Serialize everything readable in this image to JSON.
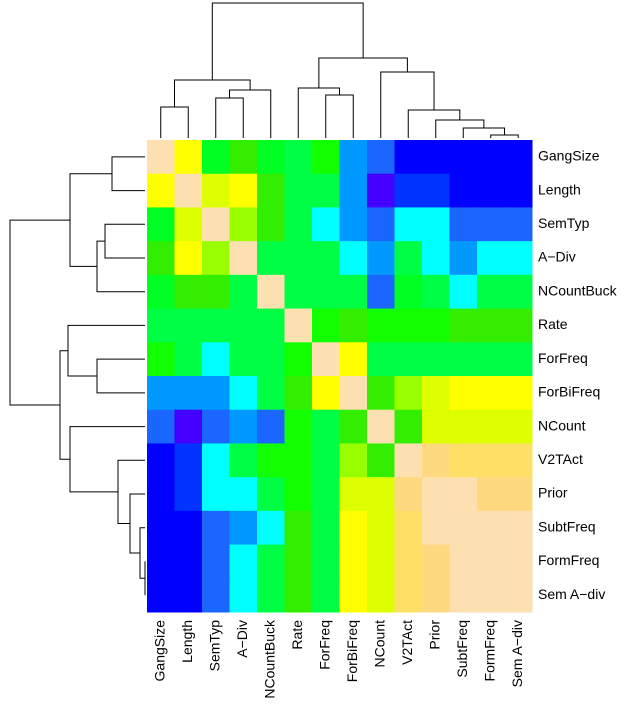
{
  "chart_data": {
    "type": "heatmap",
    "rows": [
      "GangSize",
      "Length",
      "SemTyp",
      "A−Div",
      "NCountBuck",
      "Rate",
      "ForFreq",
      "ForBiFreq",
      "NCount",
      "V2TAct",
      "Prior",
      "SubtFreq",
      "FormFreq",
      "Sem A−div"
    ],
    "columns": [
      "GangSize",
      "Length",
      "SemTyp",
      "A−Div",
      "NCountBuck",
      "Rate",
      "ForFreq",
      "ForBiFreq",
      "NCount",
      "V2TAct",
      "Prior",
      "SubtFreq",
      "FormFreq",
      "Sem A−div"
    ],
    "cell_colors": [
      [
        "#fde0b0",
        "#ffff00",
        "#00ff22",
        "#33ee00",
        "#00ff22",
        "#00ff44",
        "#11ff00",
        "#0099ff",
        "#1a66ff",
        "#0000ff",
        "#0000ff",
        "#0000ff",
        "#0000ff",
        "#0000ff"
      ],
      [
        "#ffff00",
        "#fde0b0",
        "#ddff00",
        "#ffff00",
        "#33ee00",
        "#00ff44",
        "#00ff44",
        "#0099ff",
        "#4400ff",
        "#0033ff",
        "#0033ff",
        "#0000ff",
        "#0000ff",
        "#0000ff"
      ],
      [
        "#00ff22",
        "#ddff00",
        "#fde0b0",
        "#99ff00",
        "#33ee00",
        "#00ff44",
        "#00ffff",
        "#0099ff",
        "#1a66ff",
        "#00ffff",
        "#00ffff",
        "#1a66ff",
        "#1a66ff",
        "#1a66ff"
      ],
      [
        "#33ee00",
        "#ffff00",
        "#99ff00",
        "#fde0b0",
        "#00ff44",
        "#00ff44",
        "#00ff44",
        "#00ffff",
        "#0099ff",
        "#00ff44",
        "#00ffff",
        "#0099ff",
        "#00ffff",
        "#00ffff"
      ],
      [
        "#00ff22",
        "#33ee00",
        "#33ee00",
        "#00ff44",
        "#fde0b0",
        "#00ff44",
        "#00ff44",
        "#00ff44",
        "#1a66ff",
        "#00ff22",
        "#00ff44",
        "#00ffff",
        "#00ff44",
        "#00ff44"
      ],
      [
        "#00ff44",
        "#00ff44",
        "#00ff44",
        "#00ff44",
        "#00ff44",
        "#fde0b0",
        "#11ff00",
        "#33ee00",
        "#11ff00",
        "#11ff00",
        "#11ff00",
        "#33ee00",
        "#33ee00",
        "#33ee00"
      ],
      [
        "#11ff00",
        "#00ff44",
        "#00ffff",
        "#00ff44",
        "#00ff44",
        "#11ff00",
        "#fde0b0",
        "#ffff00",
        "#00ff44",
        "#00ff44",
        "#00ff44",
        "#00ff44",
        "#00ff44",
        "#00ff44"
      ],
      [
        "#0099ff",
        "#0099ff",
        "#0099ff",
        "#00ffff",
        "#00ff44",
        "#33ee00",
        "#ffff00",
        "#fde0b0",
        "#33ee00",
        "#99ff00",
        "#ddff00",
        "#ffff00",
        "#ffff00",
        "#ffff00"
      ],
      [
        "#1a66ff",
        "#4400ff",
        "#1a66ff",
        "#0099ff",
        "#1a66ff",
        "#11ff00",
        "#00ff44",
        "#33ee00",
        "#fde0b0",
        "#33ee00",
        "#ddff00",
        "#ddff00",
        "#ddff00",
        "#ddff00"
      ],
      [
        "#0000ff",
        "#0033ff",
        "#00ffff",
        "#00ff44",
        "#11ff00",
        "#11ff00",
        "#00ff44",
        "#99ff00",
        "#33ee00",
        "#fde0b0",
        "#ffd980",
        "#ffe066",
        "#ffe066",
        "#ffe066"
      ],
      [
        "#0000ff",
        "#0033ff",
        "#00ffff",
        "#00ffff",
        "#00ff44",
        "#11ff00",
        "#00ff44",
        "#ddff00",
        "#ddff00",
        "#ffd980",
        "#fde0b0",
        "#fde0b0",
        "#ffd980",
        "#ffd980"
      ],
      [
        "#0000ff",
        "#0000ff",
        "#1a66ff",
        "#0099ff",
        "#00ffff",
        "#33ee00",
        "#00ff44",
        "#ffff00",
        "#ddff00",
        "#ffe066",
        "#fde0b0",
        "#fde0b0",
        "#fde0b0",
        "#fde0b0"
      ],
      [
        "#0000ff",
        "#0000ff",
        "#1a66ff",
        "#00ffff",
        "#00ff44",
        "#33ee00",
        "#00ff44",
        "#ffff00",
        "#ddff00",
        "#ffe066",
        "#ffd980",
        "#fde0b0",
        "#fde0b0",
        "#fde0b0"
      ],
      [
        "#0000ff",
        "#0000ff",
        "#1a66ff",
        "#00ffff",
        "#00ff44",
        "#33ee00",
        "#00ff44",
        "#ffff00",
        "#ddff00",
        "#ffe066",
        "#ffd980",
        "#fde0b0",
        "#fde0b0",
        "#fde0b0"
      ]
    ]
  }
}
